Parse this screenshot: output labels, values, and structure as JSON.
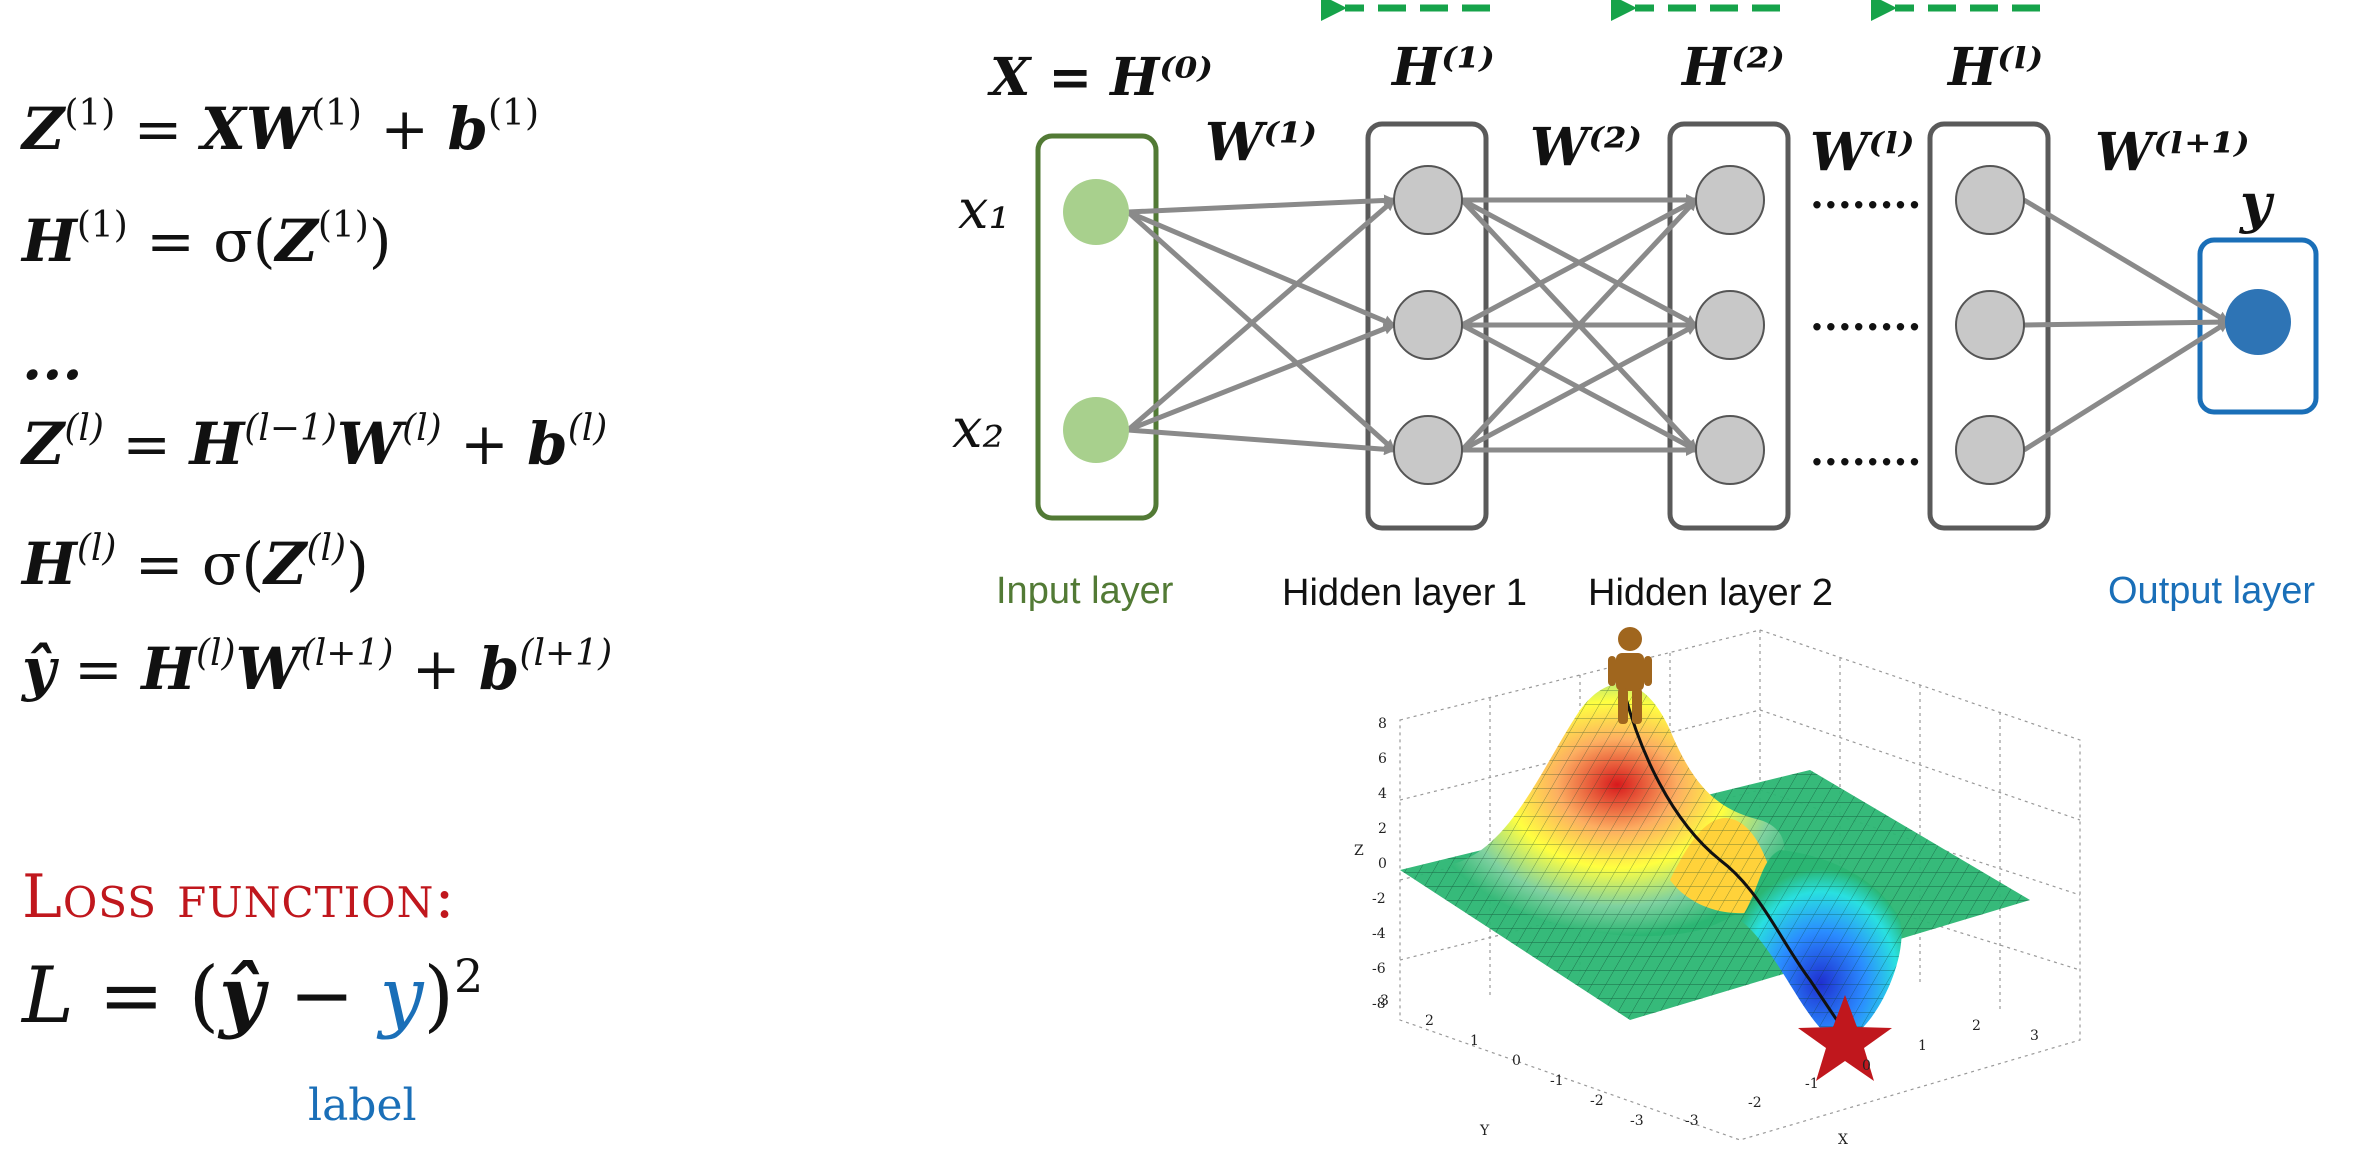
{
  "equations": {
    "line1": {
      "lhs": "Z",
      "lhs_sup": "(1)",
      "eq": " = ",
      "a": "XW",
      "a_sup": "(1)",
      "plus": " + ",
      "b": "b",
      "b_sup": "(1)"
    },
    "line2": {
      "lhs": "H",
      "lhs_sup": "(1)",
      "eq": " = σ(",
      "z": "Z",
      "z_sup": "(1)",
      "close": ")"
    },
    "ellipsis": "...",
    "line3": {
      "lhs": "Z",
      "lhs_sup": "(l)",
      "eq": " = ",
      "a": "H",
      "a_sup": "(l−1)",
      "w": "W",
      "w_sup": "(l)",
      "plus": " + ",
      "b": "b",
      "b_sup": "(l)"
    },
    "line4": {
      "lhs": "H",
      "lhs_sup": "(l)",
      "eq": " = σ(",
      "z": "Z",
      "z_sup": "(l)",
      "close": ")"
    },
    "line5": {
      "lhs": "ŷ",
      "eq": " = ",
      "a": "H",
      "a_sup": "(l)",
      "w": "W",
      "w_sup": "(l+1)",
      "plus": " + ",
      "b": "b",
      "b_sup": "(l+1)"
    }
  },
  "loss": {
    "title": "Loss function:",
    "L": "L",
    "eq": " = (",
    "yhat": "ŷ",
    "minus": " − ",
    "y": "y",
    "close": ")",
    "exp": "2",
    "label_note": "label"
  },
  "network": {
    "input_header": "X = H⁽⁰⁾",
    "h1_header": "H⁽¹⁾",
    "h2_header": "H⁽²⁾",
    "hl_header": "H⁽ˡ⁾",
    "w1": "W⁽¹⁾",
    "w2": "W⁽²⁾",
    "wl": "W⁽ˡ⁾",
    "wl1": "W⁽ˡ⁺¹⁾",
    "y": "y",
    "x1": "x₁",
    "x2": "x₂",
    "dots": "........",
    "input_layer": "Input layer",
    "hidden1": "Hidden layer 1",
    "hidden2": "Hidden layer 2",
    "output_layer": "Output layer",
    "colors": {
      "input": "#527a35",
      "input_node": "#a8d08d",
      "hidden": "#5a5a5a",
      "hidden_node": "#c8c8c8",
      "output": "#1a6fb8",
      "output_node": "#2e74b5",
      "arrow": "#8a8a8a",
      "backprop": "#16a34a"
    }
  },
  "surface_plot": {
    "z_label": "Z",
    "x_label": "X",
    "y_label": "Y",
    "z_ticks": [
      "8",
      "6",
      "4",
      "2",
      "0",
      "-2",
      "-4",
      "-6",
      "-8"
    ],
    "x_ticks": [
      "-3",
      "-2",
      "-1",
      "0",
      "1",
      "2",
      "3"
    ],
    "y_ticks": [
      "3",
      "2",
      "1",
      "0",
      "-1",
      "-2",
      "-3"
    ],
    "star_icon": "red-star",
    "person_icon": "person"
  }
}
